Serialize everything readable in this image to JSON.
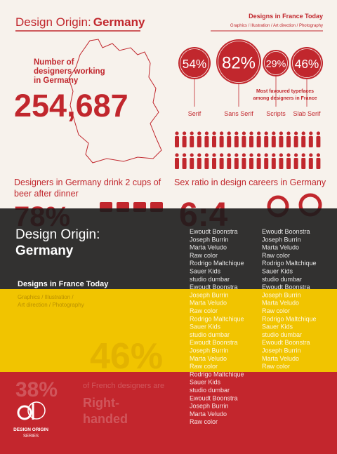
{
  "header": {
    "series_title": "Design Origin:",
    "country": "Germany",
    "book_title": "Designs in France Today",
    "disciplines": "Graphics / Illustration / Art direction / Photography"
  },
  "infographic": {
    "designers_label": [
      "Number of",
      "designers working",
      "in Germany"
    ],
    "designers_count": "254,687",
    "typefaces": [
      {
        "value": "54%",
        "label": "Serif"
      },
      {
        "value": "82%",
        "label": "Sans Serif"
      },
      {
        "value": "29%",
        "label": "Scripts"
      },
      {
        "value": "46%",
        "label": "Slab Serif"
      }
    ],
    "typefaces_caption": [
      "Most favoured typefaces",
      "among designers in France"
    ],
    "beer_caption": [
      "Designers in Germany drink 2 cups of",
      "beer after dinner"
    ],
    "beer_value": "78%",
    "sex_ratio_caption": "Sex ratio in design careers in Germany",
    "sex_ratio": "6:4",
    "faded": [
      "46%",
      "38%",
      "of French designers are",
      "Right-",
      "handed"
    ]
  },
  "cover": {
    "title_line_1": "Design Origin:",
    "title_line_2": "Germany",
    "subtitle": "Designs in France Today",
    "disciplines": [
      "Graphics / Illustration /",
      "Art direction / Photography"
    ]
  },
  "credits": {
    "column_1": [
      "Ewoudt Boonstra",
      "Joseph Burrin",
      "Marta Veludo",
      "Raw color",
      "Rodrigo Maltchique",
      "Sauer Kids",
      "studio dumbar",
      "Ewoudt Boonstra",
      "Joseph Burrin",
      "Marta Veludo",
      "Raw color",
      "Rodrigo Maltchique",
      "Sauer Kids",
      "studio dumbar",
      "Ewoudt Boonstra",
      "Joseph Burrin",
      "Marta Veludo",
      "Raw color",
      "Rodrigo Maltchique",
      "Sauer Kids",
      "studio dumbar",
      "Ewoudt Boonstra",
      "Joseph Burrin",
      "Marta Veludo",
      "Raw color"
    ],
    "column_2": [
      "Ewoudt Boonstra",
      "Joseph Burrin",
      "Marta Veludo",
      "Raw color",
      "Rodrigo Maltchique",
      "Sauer Kids",
      "studio dumbar",
      "Ewoudt Boonstra",
      "Joseph Burrin",
      "Marta Veludo",
      "Raw color",
      "Rodrigo Maltchique",
      "Sauer Kids",
      "studio dumbar",
      "Ewoudt Boonstra",
      "Joseph Burrin",
      "Marta Veludo",
      "Raw color"
    ]
  },
  "logo": {
    "line_1": "DESIGN ORIGIN",
    "line_2": "SERIES"
  }
}
